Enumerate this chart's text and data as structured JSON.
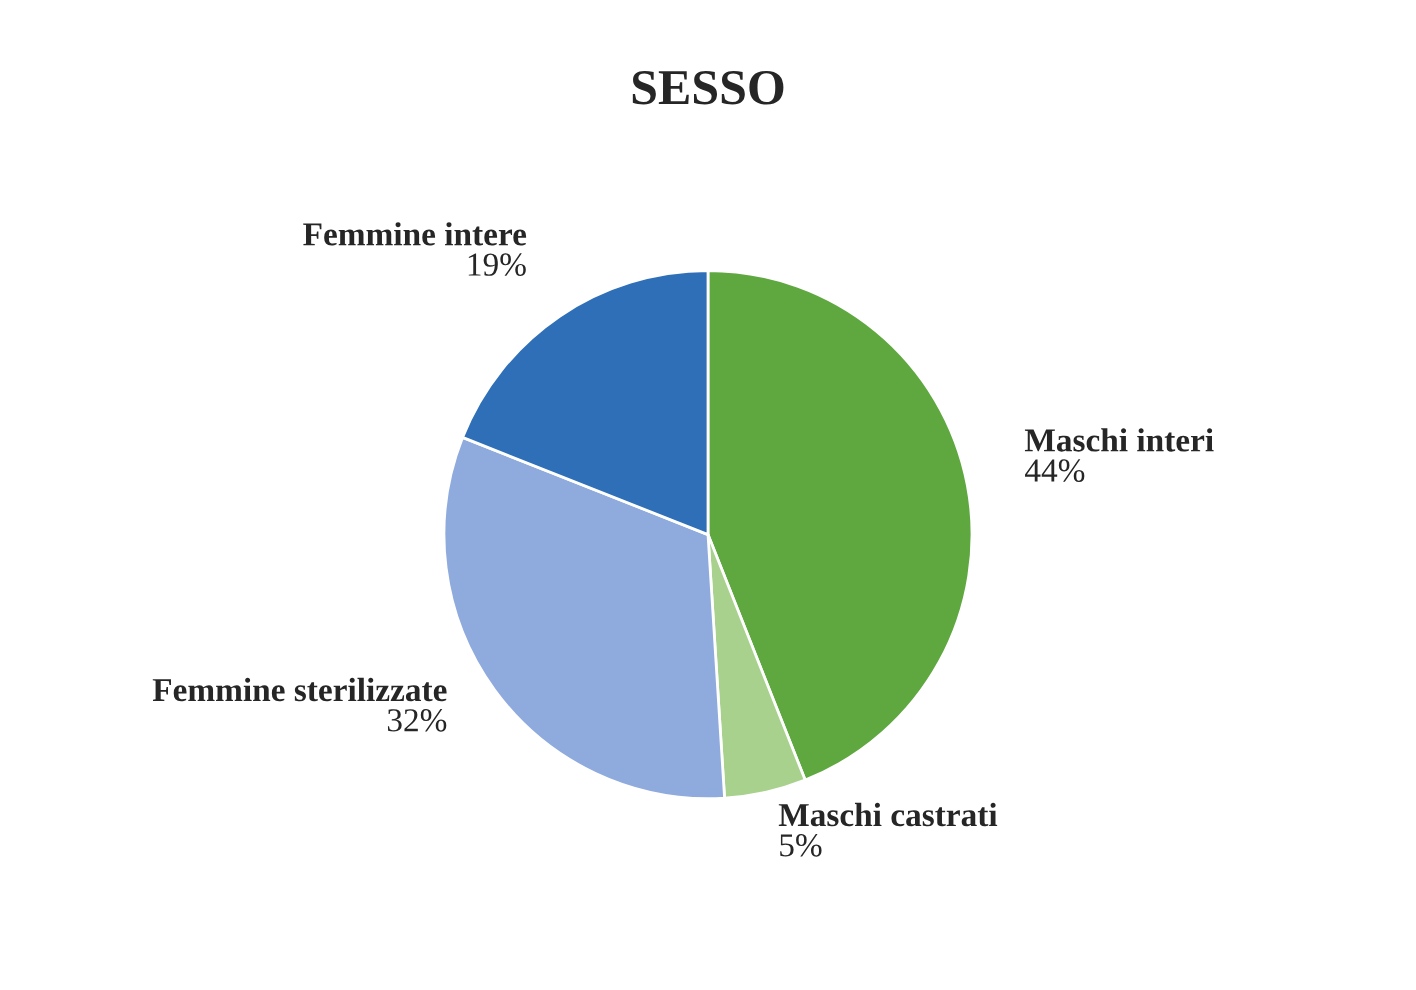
{
  "chart_data": {
    "type": "pie",
    "title": "SESSO",
    "categories": [
      "Maschi interi",
      "Maschi castrati",
      "Femmine sterilizzate",
      "Femmine intere"
    ],
    "values": [
      44,
      5,
      32,
      19
    ],
    "value_labels": [
      "44%",
      "5%",
      "32%",
      "19%"
    ],
    "colors": [
      "#5ea83f",
      "#a9d18e",
      "#8faadc",
      "#2e6fb8"
    ],
    "legend": false
  }
}
